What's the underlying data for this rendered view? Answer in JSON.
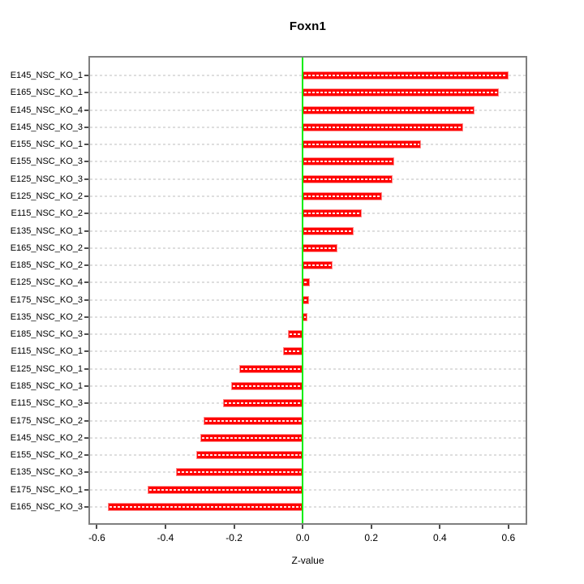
{
  "chart_data": {
    "type": "bar",
    "orientation": "horizontal",
    "title": "Foxn1",
    "xlabel": "Z-value",
    "ylabel": "",
    "categories": [
      "E145_NSC_KO_1",
      "E165_NSC_KO_1",
      "E145_NSC_KO_4",
      "E145_NSC_KO_3",
      "E155_NSC_KO_1",
      "E155_NSC_KO_3",
      "E125_NSC_KO_3",
      "E125_NSC_KO_2",
      "E115_NSC_KO_2",
      "E135_NSC_KO_1",
      "E165_NSC_KO_2",
      "E185_NSC_KO_2",
      "E125_NSC_KO_4",
      "E175_NSC_KO_3",
      "E135_NSC_KO_2",
      "E185_NSC_KO_3",
      "E115_NSC_KO_1",
      "E125_NSC_KO_1",
      "E185_NSC_KO_1",
      "E115_NSC_KO_3",
      "E175_NSC_KO_2",
      "E145_NSC_KO_2",
      "E155_NSC_KO_2",
      "E135_NSC_KO_3",
      "E175_NSC_KO_1",
      "E165_NSC_KO_3"
    ],
    "values": [
      0.6,
      0.573,
      0.502,
      0.468,
      0.346,
      0.266,
      0.263,
      0.232,
      0.172,
      0.148,
      0.101,
      0.086,
      0.022,
      0.019,
      0.013,
      -0.042,
      -0.056,
      -0.184,
      -0.209,
      -0.232,
      -0.288,
      -0.299,
      -0.311,
      -0.369,
      -0.452,
      -0.568
    ],
    "x_ticks": [
      -0.6,
      -0.4,
      -0.2,
      0.0,
      0.2,
      0.4,
      0.6
    ],
    "x_tick_labels": [
      "-0.6",
      "-0.4",
      "-0.2",
      "0.0",
      "0.2",
      "0.4",
      "0.6"
    ],
    "xlim": [
      -0.62,
      0.65
    ],
    "grid": true,
    "legend": false,
    "colors": {
      "bar_fill": "#FF0000",
      "bar_edge": "#FF8C8C",
      "bar_hatch": "#FFFFFF",
      "zero_line": "#00EE00",
      "gridline": "#DEDEDE",
      "plot_border": "#7F7F7F",
      "background": "#FFFFFF"
    }
  }
}
